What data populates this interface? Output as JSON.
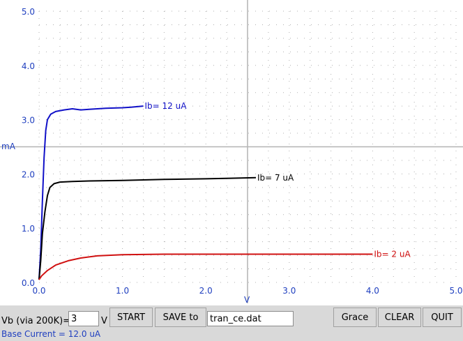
{
  "chart_data": {
    "type": "line",
    "xlabel": "V",
    "ylabel": "mA",
    "xlim": [
      0,
      5
    ],
    "ylim": [
      0,
      5
    ],
    "x_ticks": [
      "0.0",
      "1.0",
      "2.0",
      "3.0",
      "4.0",
      "5.0"
    ],
    "y_ticks": [
      "0.0",
      "1.0",
      "2.0",
      "3.0",
      "4.0",
      "5.0"
    ],
    "crosshair": [
      2.5,
      2.5
    ],
    "series": [
      {
        "name": "Ib=  12 uA",
        "color": "#1010c8",
        "points": [
          [
            0,
            0.05
          ],
          [
            0.02,
            0.6
          ],
          [
            0.04,
            1.5
          ],
          [
            0.06,
            2.3
          ],
          [
            0.08,
            2.8
          ],
          [
            0.1,
            3.0
          ],
          [
            0.14,
            3.1
          ],
          [
            0.2,
            3.15
          ],
          [
            0.3,
            3.18
          ],
          [
            0.4,
            3.2
          ],
          [
            0.5,
            3.18
          ],
          [
            0.6,
            3.19
          ],
          [
            0.8,
            3.21
          ],
          [
            1.0,
            3.22
          ],
          [
            1.1,
            3.23
          ],
          [
            1.25,
            3.25
          ]
        ]
      },
      {
        "name": "Ib=   7 uA",
        "color": "#000000",
        "points": [
          [
            0,
            0.05
          ],
          [
            0.02,
            0.4
          ],
          [
            0.04,
            0.9
          ],
          [
            0.07,
            1.3
          ],
          [
            0.1,
            1.6
          ],
          [
            0.13,
            1.75
          ],
          [
            0.18,
            1.82
          ],
          [
            0.25,
            1.85
          ],
          [
            0.4,
            1.86
          ],
          [
            0.6,
            1.87
          ],
          [
            1.0,
            1.88
          ],
          [
            1.5,
            1.9
          ],
          [
            2.0,
            1.91
          ],
          [
            2.3,
            1.92
          ],
          [
            2.6,
            1.93
          ]
        ]
      },
      {
        "name": "Ib=   2 uA",
        "color": "#d01010",
        "points": [
          [
            0,
            0.05
          ],
          [
            0.03,
            0.12
          ],
          [
            0.1,
            0.22
          ],
          [
            0.2,
            0.32
          ],
          [
            0.35,
            0.4
          ],
          [
            0.5,
            0.45
          ],
          [
            0.7,
            0.49
          ],
          [
            1.0,
            0.51
          ],
          [
            1.5,
            0.52
          ],
          [
            2.0,
            0.52
          ],
          [
            2.5,
            0.52
          ],
          [
            3.0,
            0.52
          ],
          [
            3.5,
            0.52
          ],
          [
            4.0,
            0.52
          ]
        ]
      }
    ]
  },
  "controls": {
    "vb_label": "Vb (via 200K)=",
    "vb_value": "3",
    "vb_unit": "V",
    "start_label": "START",
    "save_label": "SAVE to",
    "filename_value": "tran_ce.dat",
    "grace_label": "Grace",
    "clear_label": "CLEAR",
    "quit_label": "QUIT"
  },
  "status": {
    "base_current": "Base Current =  12.0 uA"
  },
  "colors": {
    "axis_text": "#1f3fbf",
    "background": "#ffffff",
    "window": "#d9d9d9"
  }
}
